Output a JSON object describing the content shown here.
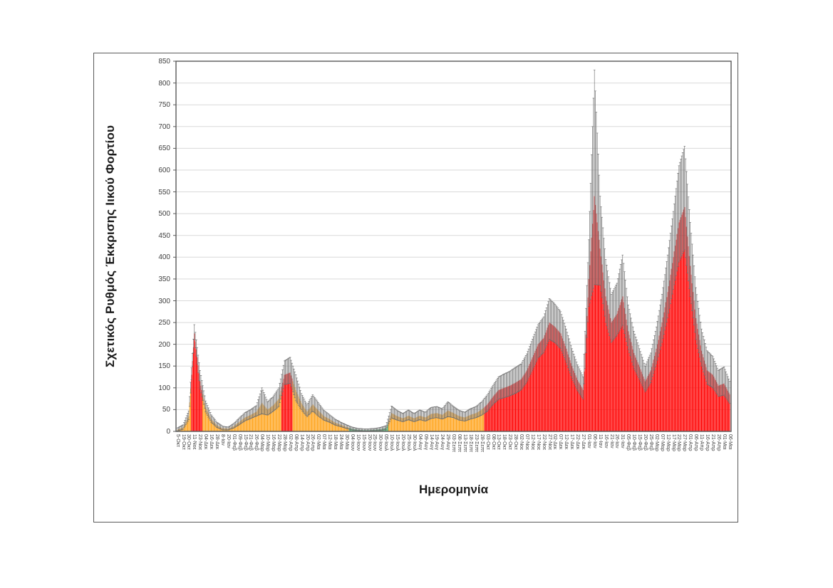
{
  "figure": {
    "background": "#ffffff",
    "frame_color": "#595959"
  },
  "chart_data": {
    "type": "bar",
    "title": "",
    "xlabel": "Ημερομηνία",
    "ylabel": "Σχετικός Ρυθμός Έκκρισης Ιικού Φορτίου",
    "ylim": [
      0,
      850
    ],
    "yticks": [
      0,
      50,
      100,
      150,
      200,
      250,
      300,
      350,
      400,
      450,
      500,
      550,
      600,
      650,
      700,
      750,
      800,
      850
    ],
    "grid": "horizontal",
    "gridline_color": "#d9d9d9",
    "legend_position": "none",
    "error_bars": "per-bar, gray, symmetric caps",
    "palette": {
      "r": "#ff0000",
      "o": "#ffa41c",
      "g": "#4aa564",
      "error_bar": "#6f6f6f",
      "axis": "#595959"
    },
    "categories": [
      "5-Οκτ",
      "19-Οκτ",
      "30-Οκτ",
      "11-Νοε",
      "23-Νοε",
      "04-Δεκ",
      "16-Δεκ",
      "28-Δεκ",
      "8-Ιαν",
      "20-Ιαν",
      "01-Φεβ",
      "09-Φεβ",
      "15-Φεβ",
      "21-Φεβ",
      "26-Φεβ",
      "04-Μαρ",
      "10-Μαρ",
      "16-Μαρ",
      "22-Μαρ",
      "28-Μαρ",
      "02-Απρ",
      "08-Απρ",
      "14-Απρ",
      "20-Απρ",
      "26-Απρ",
      "02-Μαι",
      "07-Μαι",
      "12-Μαι",
      "18-Μαι",
      "24-Μαι",
      "30-Μαι",
      "04-Ιουν",
      "10-Ιουν",
      "15-Ιουν",
      "20-Ιουν",
      "25-Ιουν",
      "30-Ιουν",
      "05-Ιουλ",
      "10-Ιουλ",
      "15-Ιουλ",
      "20-Ιουλ",
      "25-Ιουλ",
      "30-Ιουλ",
      "04-Αυγ",
      "09-Αυγ",
      "14-Αυγ",
      "19-Αυγ",
      "24-Αυγ",
      "29-Αυγ",
      "03-Σεπτ",
      "08-Σεπτ",
      "13-Σεπτ",
      "18-Σεπτ",
      "23-Σεπτ",
      "28-Σεπτ",
      "03-Οκτ",
      "08-Οκτ",
      "13-Οκτ",
      "18-Οκτ",
      "23-Οκτ",
      "28-Οκτ",
      "02-Νοε",
      "07-Νοε",
      "12-Νοε",
      "17-Νοε",
      "22-Νοε",
      "27-Νοε",
      "02-Δεκ",
      "07-Δεκ",
      "12-Δεκ",
      "17-Δεκ",
      "22-Δεκ",
      "27-Δεκ",
      "01-Ιαν",
      "06-Ιαν",
      "11-Ιαν",
      "16-Ιαν",
      "21-Ιαν",
      "26-Ιαν",
      "31-Ιαν",
      "05-Φεβ",
      "10-Φεβ",
      "15-Φεβ",
      "20-Φεβ",
      "25-Φεβ",
      "02-Μαρ",
      "07-Μαρ",
      "12-Μαρ",
      "17-Μαρ",
      "22-Μαρ",
      "27-Μαρ",
      "01-Απρ",
      "06-Απρ",
      "11-Απρ",
      "16-Απρ",
      "21-Απρ",
      "26-Απρ",
      "01-Μαι",
      "06-Μαι"
    ],
    "series": [
      {
        "name": "Σχετικός Ρυθμός Έκκρισης Ιικού Φορτίου",
        "values": [
          4,
          9,
          35,
          225,
          115,
          55,
          28,
          14,
          7,
          6,
          12,
          22,
          32,
          38,
          45,
          65,
          50,
          60,
          75,
          130,
          135,
          95,
          65,
          45,
          62,
          48,
          35,
          28,
          20,
          15,
          10,
          6,
          4,
          3,
          3,
          4,
          5,
          8,
          42,
          35,
          30,
          36,
          30,
          36,
          32,
          40,
          42,
          38,
          48,
          42,
          35,
          32,
          38,
          42,
          50,
          62,
          80,
          95,
          100,
          105,
          112,
          120,
          140,
          170,
          200,
          215,
          250,
          240,
          225,
          190,
          150,
          118,
          95,
          350,
          540,
          420,
          310,
          250,
          270,
          310,
          230,
          180,
          148,
          115,
          140,
          190,
          250,
          320,
          400,
          480,
          515,
          380,
          260,
          185,
          140,
          130,
          105,
          110,
          85
        ],
        "err_up": [
          4,
          6,
          12,
          20,
          25,
          15,
          10,
          7,
          5,
          4,
          6,
          9,
          11,
          12,
          14,
          35,
          18,
          20,
          25,
          32,
          35,
          35,
          22,
          16,
          22,
          18,
          13,
          10,
          8,
          6,
          5,
          4,
          3,
          3,
          3,
          3,
          4,
          5,
          16,
          13,
          11,
          13,
          11,
          13,
          12,
          15,
          15,
          14,
          20,
          15,
          13,
          12,
          14,
          15,
          18,
          22,
          26,
          30,
          32,
          33,
          35,
          35,
          38,
          42,
          45,
          48,
          55,
          52,
          50,
          45,
          40,
          35,
          30,
          90,
          290,
          120,
          85,
          65,
          70,
          95,
          60,
          50,
          42,
          35,
          40,
          50,
          65,
          85,
          105,
          130,
          140,
          100,
          70,
          50,
          45,
          42,
          35,
          38,
          30
        ],
        "colors": [
          "o",
          "o",
          "o",
          "r",
          "r",
          "o",
          "o",
          "o",
          "o",
          "o",
          "o",
          "o",
          "o",
          "o",
          "o",
          "o",
          "o",
          "o",
          "o",
          "r",
          "r",
          "o",
          "o",
          "o",
          "o",
          "o",
          "o",
          "o",
          "o",
          "o",
          "o",
          "g",
          "g",
          "g",
          "g",
          "g",
          "g",
          "g",
          "o",
          "o",
          "o",
          "o",
          "o",
          "o",
          "o",
          "o",
          "o",
          "o",
          "o",
          "o",
          "o",
          "o",
          "o",
          "o",
          "o",
          "r",
          "r",
          "r",
          "r",
          "r",
          "r",
          "r",
          "r",
          "r",
          "r",
          "r",
          "r",
          "r",
          "r",
          "r",
          "r",
          "r",
          "r",
          "r",
          "r",
          "r",
          "r",
          "r",
          "r",
          "r",
          "r",
          "r",
          "r",
          "r",
          "r",
          "r",
          "r",
          "r",
          "r",
          "r",
          "r",
          "r",
          "r",
          "r",
          "r",
          "r",
          "r",
          "r",
          "r"
        ]
      }
    ]
  }
}
